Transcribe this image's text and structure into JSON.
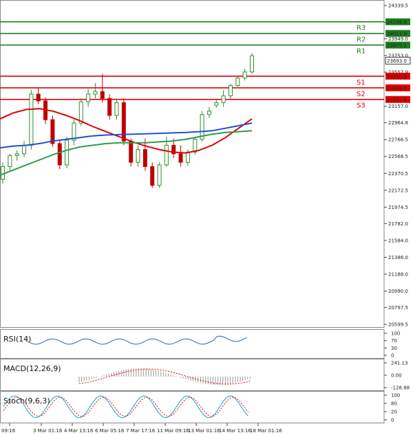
{
  "chart_data": {
    "type": "candlestick",
    "symbol_note": "",
    "price_axis": {
      "ticks": [
        "24339.5",
        "24141.7",
        "23949.0",
        "23753.0",
        "23557.9",
        "23157.0",
        "22964.8",
        "22766.5",
        "22568.5",
        "22370.5",
        "22172.5",
        "21974.5",
        "21782.0",
        "21584.0",
        "21386.0",
        "21188.0",
        "20990.0",
        "20797.5",
        "20599.5"
      ],
      "ylim": [
        20599.5,
        24339.5
      ]
    },
    "time_axis": {
      "labels": [
        "09:16",
        "3 Mar 01:16",
        "4 Mar 13:16",
        "6 Mar 05:16",
        "7 Mar 17:16",
        "11 Mar 09:16",
        "13 Mar 01:16",
        "14 Mar 13:16",
        "18 Mar 01:16"
      ]
    },
    "levels": [
      {
        "name": "R3",
        "value": 24148.6,
        "color": "#1e7d1e"
      },
      {
        "name": "R2",
        "value": 24011.9,
        "color": "#1e7d1e"
      },
      {
        "name": "R1",
        "value": 23875.2,
        "color": "#1e7d1e"
      },
      {
        "name": "S1",
        "value": 23510.8,
        "color": "#e00000"
      },
      {
        "name": "S2",
        "value": 23374.1,
        "color": "#e00000"
      },
      {
        "name": "S3",
        "value": 23237.4,
        "color": "#e00000"
      }
    ],
    "current_price": "23693.0",
    "extra_price_labels": [
      "23753.0",
      "23557.9",
      "23277.4"
    ],
    "candles": [
      [
        22300,
        22500,
        22250,
        22450
      ],
      [
        22450,
        22600,
        22400,
        22580
      ],
      [
        22580,
        22640,
        22520,
        22600
      ],
      [
        22600,
        22750,
        22560,
        22700
      ],
      [
        22700,
        23350,
        22650,
        23300
      ],
      [
        23300,
        23380,
        23180,
        23220
      ],
      [
        23220,
        23260,
        22950,
        23000
      ],
      [
        23000,
        23050,
        22680,
        22720
      ],
      [
        22720,
        22760,
        22420,
        22470
      ],
      [
        22470,
        22800,
        22430,
        22760
      ],
      [
        22760,
        23000,
        22700,
        22960
      ],
      [
        22960,
        23250,
        22930,
        23210
      ],
      [
        23210,
        23360,
        23150,
        23300
      ],
      [
        23300,
        23430,
        23250,
        23330
      ],
      [
        23330,
        23540,
        23200,
        23250
      ],
      [
        23250,
        23300,
        23000,
        23050
      ],
      [
        23050,
        23250,
        23000,
        23200
      ],
      [
        23200,
        23250,
        22700,
        22750
      ],
      [
        22750,
        22780,
        22450,
        22500
      ],
      [
        22500,
        22700,
        22450,
        22650
      ],
      [
        22650,
        22780,
        22400,
        22450
      ],
      [
        22450,
        22500,
        22200,
        22230
      ],
      [
        22230,
        22500,
        22200,
        22470
      ],
      [
        22470,
        22800,
        22450,
        22700
      ],
      [
        22700,
        22780,
        22550,
        22600
      ],
      [
        22600,
        22700,
        22450,
        22500
      ],
      [
        22500,
        22650,
        22460,
        22620
      ],
      [
        22620,
        22800,
        22590,
        22770
      ],
      [
        22770,
        23100,
        22740,
        23060
      ],
      [
        23060,
        23150,
        23020,
        23100
      ],
      [
        23170,
        23230,
        23140,
        23200
      ],
      [
        23200,
        23350,
        23150,
        23280
      ],
      [
        23280,
        23420,
        23240,
        23400
      ],
      [
        23400,
        23520,
        23370,
        23490
      ],
      [
        23490,
        23600,
        23460,
        23560
      ],
      [
        23560,
        23780,
        23540,
        23750
      ]
    ],
    "ma_series": [
      {
        "color": "#e00000",
        "values": [
          23010,
          23080,
          23120,
          23130,
          23100,
          23050,
          22990,
          22920,
          22860,
          22800,
          22740,
          22690,
          22650,
          22620,
          22610,
          22640,
          22700,
          22790,
          22900,
          23010
        ]
      },
      {
        "color": "#2050d0",
        "values": [
          22670,
          22690,
          22700,
          22720,
          22750,
          22770,
          22790,
          22810,
          22820,
          22825,
          22830,
          22835,
          22840,
          22845,
          22850,
          22860,
          22870,
          22900,
          22930,
          22960
        ]
      },
      {
        "color": "#2a9d4a",
        "values": [
          22350,
          22410,
          22470,
          22530,
          22590,
          22640,
          22680,
          22700,
          22720,
          22730,
          22730,
          22730,
          22740,
          22750,
          22770,
          22800,
          22830,
          22850,
          22860,
          22870
        ]
      }
    ],
    "indicators": [
      {
        "title": "RSI(14)",
        "ticks": [
          "100",
          "70",
          "30",
          "0"
        ]
      },
      {
        "title": "MACD(12,26,9)",
        "ticks": [
          "241.13",
          "0.00",
          "-128.88"
        ]
      },
      {
        "title": "Stoch(9,6,3)",
        "ticks": [
          "100",
          "80",
          "20",
          "0"
        ]
      }
    ]
  }
}
